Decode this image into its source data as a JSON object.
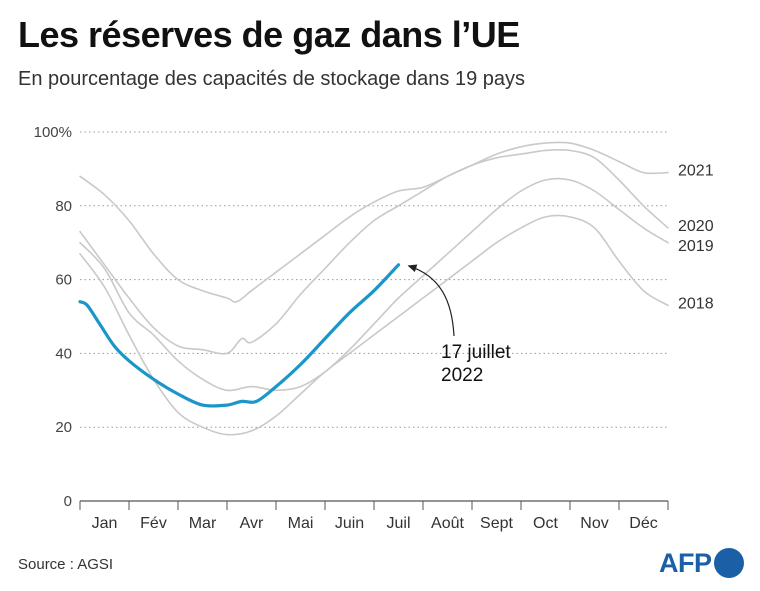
{
  "title": "Les réserves de gaz dans l’UE",
  "subtitle": "En pourcentage des capacités de stockage dans 19 pays",
  "source": "Source : AGSI",
  "logo_text": "AFP",
  "colors": {
    "highlight": "#1a96c8",
    "history": "#c9c9c9",
    "grid": "#9a9a9a",
    "logo": "#1b5fa7"
  },
  "chart_data": {
    "type": "line",
    "xlabel": "",
    "ylabel": "",
    "ylim": [
      0,
      100
    ],
    "yticks": [
      {
        "value": 0,
        "label": "0"
      },
      {
        "value": 20,
        "label": "20"
      },
      {
        "value": 40,
        "label": "40"
      },
      {
        "value": 60,
        "label": "60"
      },
      {
        "value": 80,
        "label": "80"
      },
      {
        "value": 100,
        "label": "100%"
      }
    ],
    "grid": "horizontal-dotted",
    "months": [
      "Jan",
      "Fév",
      "Mar",
      "Avr",
      "Mai",
      "Juin",
      "Juil",
      "Août",
      "Sept",
      "Oct",
      "Nov",
      "Déc"
    ],
    "x_unit": "month (0 = 1 Jan, 12 = 31 Dec)",
    "series": [
      {
        "name": "2021",
        "style": "history",
        "x": [
          0,
          0.5,
          1,
          1.5,
          2,
          2.5,
          3,
          3.2,
          3.5,
          4,
          4.5,
          5,
          5.5,
          6,
          6.5,
          7,
          7.5,
          8,
          8.5,
          9,
          9.5,
          10,
          10.5,
          11,
          11.5,
          12
        ],
        "y": [
          88,
          83,
          76,
          67,
          60,
          57,
          55,
          54,
          57,
          62,
          67,
          72,
          77,
          81,
          84,
          85,
          88,
          91,
          94,
          96,
          97,
          97,
          95,
          92,
          89,
          89
        ]
      },
      {
        "name": "2020",
        "style": "history",
        "x": [
          0,
          0.5,
          1,
          1.5,
          2,
          2.5,
          3,
          3.3,
          3.5,
          4,
          4.5,
          5,
          5.5,
          6,
          6.5,
          7,
          7.5,
          8,
          8.5,
          9,
          9.5,
          10,
          10.5,
          11,
          11.5,
          12
        ],
        "y": [
          73,
          64,
          55,
          47,
          42,
          41,
          40,
          44,
          43,
          48,
          56,
          63,
          70,
          76,
          80,
          84,
          88,
          91,
          93,
          94,
          95,
          95,
          93,
          87,
          80,
          74
        ]
      },
      {
        "name": "2019",
        "style": "history",
        "x": [
          0,
          0.5,
          1,
          1.5,
          2,
          2.5,
          3,
          3.5,
          4,
          4.5,
          5,
          5.5,
          6,
          6.5,
          7,
          7.5,
          8,
          8.5,
          9,
          9.5,
          10,
          10.5,
          11,
          11.5,
          12
        ],
        "y": [
          70,
          63,
          51,
          45,
          38,
          33,
          30,
          31,
          30,
          31,
          35,
          41,
          48,
          55,
          61,
          67,
          73,
          79,
          84,
          87,
          87,
          84,
          79,
          74,
          70
        ]
      },
      {
        "name": "2018",
        "style": "history",
        "x": [
          0,
          0.5,
          1,
          1.5,
          2,
          2.5,
          3,
          3.5,
          4,
          4.5,
          5,
          5.5,
          6,
          6.5,
          7,
          7.5,
          8,
          8.5,
          9,
          9.5,
          10,
          10.5,
          11,
          11.5,
          12
        ],
        "y": [
          67,
          58,
          45,
          33,
          24,
          20,
          18,
          19,
          23,
          29,
          35,
          40,
          45,
          50,
          55,
          60,
          65,
          70,
          74,
          77,
          77,
          74,
          65,
          57,
          53
        ]
      },
      {
        "name": "2022",
        "style": "highlight",
        "x": [
          0,
          0.15,
          0.4,
          0.7,
          1,
          1.5,
          2,
          2.5,
          3,
          3.3,
          3.6,
          4,
          4.5,
          5,
          5.5,
          6,
          6.5
        ],
        "y": [
          54,
          53,
          48,
          42,
          38,
          33,
          29,
          26,
          26,
          27,
          27,
          31,
          37,
          44,
          51,
          57,
          64
        ]
      }
    ],
    "series_end_labels": [
      "2021",
      "2020",
      "2019",
      "2018"
    ],
    "annotation": {
      "lines": [
        "17 juillet",
        "2022"
      ],
      "points_to": {
        "x": 6.5,
        "y": 64
      }
    }
  }
}
